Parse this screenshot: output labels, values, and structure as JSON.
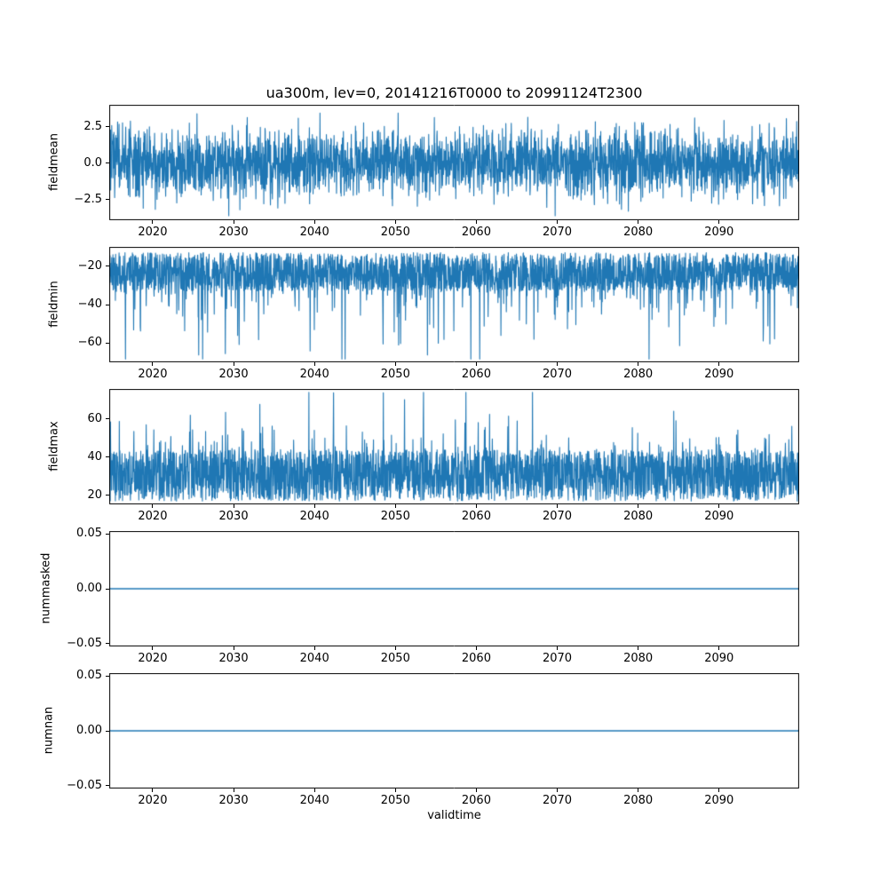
{
  "figure": {
    "title": "ua300m, lev=0, 20141216T0000 to 20991124T2300",
    "xlabel": "validtime",
    "line_color": "#1f77b4",
    "background": "#ffffff"
  },
  "x_axis": {
    "label": "validtime",
    "range": [
      2014.63,
      2099.9
    ],
    "ticks": [
      {
        "v": 2020,
        "label": "2020"
      },
      {
        "v": 2030,
        "label": "2030"
      },
      {
        "v": 2040,
        "label": "2040"
      },
      {
        "v": 2050,
        "label": "2050"
      },
      {
        "v": 2060,
        "label": "2060"
      },
      {
        "v": 2070,
        "label": "2070"
      },
      {
        "v": 2080,
        "label": "2080"
      },
      {
        "v": 2090,
        "label": "2090"
      }
    ]
  },
  "chart_data": [
    {
      "type": "line",
      "ylabel": "fieldmean",
      "ylim": [
        -3.9,
        4.0
      ],
      "y_ticks": [
        {
          "v": 2.5,
          "label": "2.5"
        },
        {
          "v": 0.0,
          "label": "0.0"
        },
        {
          "v": -2.5,
          "label": "−2.5"
        }
      ],
      "series": {
        "kind": "gaussian",
        "mean": 0.05,
        "sigma": 1.15,
        "clamp": [
          -3.6,
          3.65
        ],
        "n": 2800,
        "seed": 7,
        "description": "noisy hourly mean of ua300m, centered near 0, spread roughly -3.5 to 3.5"
      }
    },
    {
      "type": "line",
      "ylabel": "fieldmin",
      "ylim": [
        -70.2,
        -9.8
      ],
      "y_ticks": [
        {
          "v": -20,
          "label": "−20"
        },
        {
          "v": -40,
          "label": "−40"
        },
        {
          "v": -60,
          "label": "−60"
        }
      ],
      "series": {
        "kind": "spiky",
        "base": -12.8,
        "spread": 20,
        "sign": -1,
        "spike_prob": 0.17,
        "spike_scale": 10,
        "clamp": [
          -68.5,
          -12.5
        ],
        "n": 2800,
        "seed": 11,
        "description": "field minimum, dense band -13 to -33 with downward spikes to about -68"
      }
    },
    {
      "type": "line",
      "ylabel": "fieldmax",
      "ylim": [
        15.3,
        75.8
      ],
      "y_ticks": [
        {
          "v": 60,
          "label": "60"
        },
        {
          "v": 40,
          "label": "40"
        },
        {
          "v": 20,
          "label": "20"
        }
      ],
      "series": {
        "kind": "spiky",
        "base": 17,
        "spread": 27,
        "sign": 1,
        "spike_prob": 0.12,
        "spike_scale": 8.5,
        "clamp": [
          16.8,
          74
        ],
        "n": 2800,
        "seed": 23,
        "description": "field maximum, dense band 17 to 44 with upward spikes to about 74"
      }
    },
    {
      "type": "line",
      "ylabel": "nummasked",
      "ylim": [
        -0.0528,
        0.0528
      ],
      "y_ticks": [
        {
          "v": 0.05,
          "label": "0.05"
        },
        {
          "v": 0.0,
          "label": "0.00"
        },
        {
          "v": -0.05,
          "label": "−0.05"
        }
      ],
      "series": {
        "kind": "constant",
        "value": 0,
        "n": 2,
        "seed": 1,
        "description": "constant zero masked-point count"
      }
    },
    {
      "type": "line",
      "ylabel": "numnan",
      "ylim": [
        -0.0528,
        0.0528
      ],
      "y_ticks": [
        {
          "v": 0.05,
          "label": "0.05"
        },
        {
          "v": 0.0,
          "label": "0.00"
        },
        {
          "v": -0.05,
          "label": "−0.05"
        }
      ],
      "series": {
        "kind": "constant",
        "value": 0,
        "n": 2,
        "seed": 1,
        "description": "constant zero NaN count"
      }
    }
  ]
}
